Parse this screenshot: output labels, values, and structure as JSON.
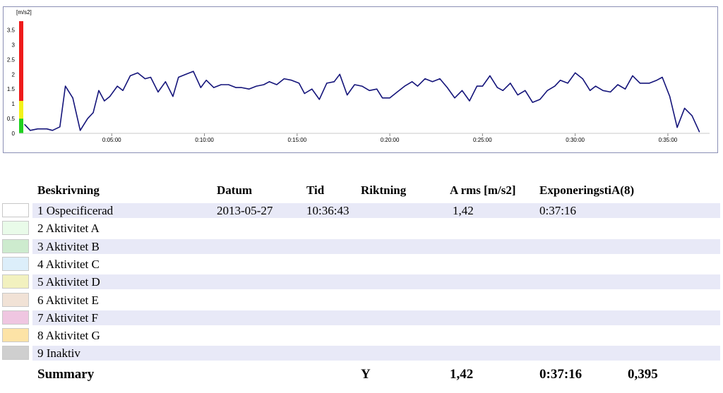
{
  "chart_data": {
    "type": "line",
    "title": "",
    "ylabel": "[m/s2]",
    "xlabel": "",
    "ylim": [
      0,
      3.8
    ],
    "xlim_minutes": [
      0,
      37.25
    ],
    "y_ticks": [
      "0",
      "0.5",
      "1",
      "1.5",
      "2",
      "2.5",
      "3",
      "3.5"
    ],
    "y_tick_values": [
      0,
      0.5,
      1,
      1.5,
      2,
      2.5,
      3,
      3.5
    ],
    "x_ticks": [
      "0:05:00",
      "0:10:00",
      "0:15:00",
      "0:20:00",
      "0:25:00",
      "0:30:00",
      "0:35:00"
    ],
    "x_tick_values_minutes": [
      5,
      10,
      15,
      20,
      25,
      30,
      35
    ],
    "grid": false,
    "line_color": "#14147a",
    "scale_bar": [
      {
        "from": 0,
        "to": 0.5,
        "color": "#1fd11f"
      },
      {
        "from": 0.5,
        "to": 1.1,
        "color": "#f2f21a"
      },
      {
        "from": 1.1,
        "to": 3.8,
        "color": "#ee1b1b"
      }
    ],
    "series": [
      {
        "x_minutes": [
          0.3,
          0.6,
          1.0,
          1.5,
          1.8,
          2.2,
          2.5,
          2.9,
          3.3,
          3.7,
          4.0,
          4.3,
          4.6,
          4.9,
          5.3,
          5.6,
          6.0,
          6.4,
          6.8,
          7.1,
          7.5,
          7.9,
          8.3,
          8.6,
          9.0,
          9.4,
          9.8,
          10.1,
          10.5,
          10.9,
          11.3,
          11.7,
          12.0,
          12.4,
          12.8,
          13.2,
          13.5,
          13.9,
          14.3,
          14.7,
          15.1,
          15.4,
          15.8,
          16.2,
          16.6,
          17.0,
          17.3,
          17.7,
          18.1,
          18.5,
          18.9,
          19.3,
          19.6,
          20.0,
          20.4,
          20.8,
          21.2,
          21.5,
          21.9,
          22.3,
          22.7,
          23.1,
          23.5,
          23.9,
          24.3,
          24.7,
          25.0,
          25.4,
          25.8,
          26.1,
          26.5,
          26.9,
          27.3,
          27.7,
          28.1,
          28.5,
          28.9,
          29.2,
          29.6,
          30.0,
          30.4,
          30.8,
          31.1,
          31.5,
          31.9,
          32.3,
          32.7,
          33.1,
          33.5,
          34.0,
          34.4,
          34.7,
          35.1,
          35.5,
          35.9,
          36.3,
          36.7
        ],
        "values": [
          0.3,
          0.1,
          0.15,
          0.15,
          0.1,
          0.22,
          1.6,
          1.2,
          0.1,
          0.5,
          0.7,
          1.45,
          1.1,
          1.25,
          1.6,
          1.45,
          1.95,
          2.05,
          1.85,
          1.9,
          1.4,
          1.75,
          1.25,
          1.9,
          2.0,
          2.1,
          1.55,
          1.8,
          1.55,
          1.65,
          1.65,
          1.55,
          1.55,
          1.5,
          1.6,
          1.65,
          1.75,
          1.65,
          1.85,
          1.8,
          1.7,
          1.35,
          1.5,
          1.15,
          1.7,
          1.75,
          2.0,
          1.3,
          1.65,
          1.6,
          1.45,
          1.5,
          1.2,
          1.2,
          1.4,
          1.6,
          1.75,
          1.6,
          1.85,
          1.75,
          1.85,
          1.55,
          1.2,
          1.45,
          1.1,
          1.6,
          1.6,
          1.95,
          1.55,
          1.45,
          1.7,
          1.3,
          1.45,
          1.05,
          1.15,
          1.45,
          1.6,
          1.8,
          1.7,
          2.05,
          1.85,
          1.45,
          1.6,
          1.45,
          1.4,
          1.65,
          1.5,
          1.95,
          1.7,
          1.7,
          1.8,
          1.9,
          1.25,
          0.2,
          0.85,
          0.6,
          0.05
        ]
      }
    ]
  },
  "table": {
    "headers": {
      "beskrivning": "Beskrivning",
      "datum": "Datum",
      "tid": "Tid",
      "riktning": "Riktning",
      "arms": "A rms [m/s2]",
      "exponering": "ExponeringstiA(8)"
    },
    "rows": [
      {
        "label": "1 Ospecificerad",
        "swatch": "#ffffff",
        "datum": "2013-05-27",
        "tid": "10:36:43",
        "riktning": "",
        "arms": "1,42",
        "exponering": "0:37:16"
      },
      {
        "label": "2 Aktivitet A",
        "swatch": "#e9fbe9",
        "datum": "",
        "tid": "",
        "riktning": "",
        "arms": "",
        "exponering": ""
      },
      {
        "label": "3 Aktivitet B",
        "swatch": "#cdebce",
        "datum": "",
        "tid": "",
        "riktning": "",
        "arms": "",
        "exponering": ""
      },
      {
        "label": "4 Aktivitet C",
        "swatch": "#dceefa",
        "datum": "",
        "tid": "",
        "riktning": "",
        "arms": "",
        "exponering": ""
      },
      {
        "label": "5 Aktivitet D",
        "swatch": "#f2f1bf",
        "datum": "",
        "tid": "",
        "riktning": "",
        "arms": "",
        "exponering": ""
      },
      {
        "label": "6 Aktivitet E",
        "swatch": "#f1e2d6",
        "datum": "",
        "tid": "",
        "riktning": "",
        "arms": "",
        "exponering": ""
      },
      {
        "label": "7 Aktivitet F",
        "swatch": "#efc6e1",
        "datum": "",
        "tid": "",
        "riktning": "",
        "arms": "",
        "exponering": ""
      },
      {
        "label": "8 Aktivitet G",
        "swatch": "#fde3a6",
        "datum": "",
        "tid": "",
        "riktning": "",
        "arms": "",
        "exponering": ""
      },
      {
        "label": "9 Inaktiv",
        "swatch": "#cfcfcf",
        "datum": "",
        "tid": "",
        "riktning": "",
        "arms": "",
        "exponering": ""
      }
    ],
    "summary": {
      "label": "Summary",
      "riktning": "Y",
      "arms": "1,42",
      "exponering": "0:37:16",
      "a8": "0,395"
    }
  }
}
